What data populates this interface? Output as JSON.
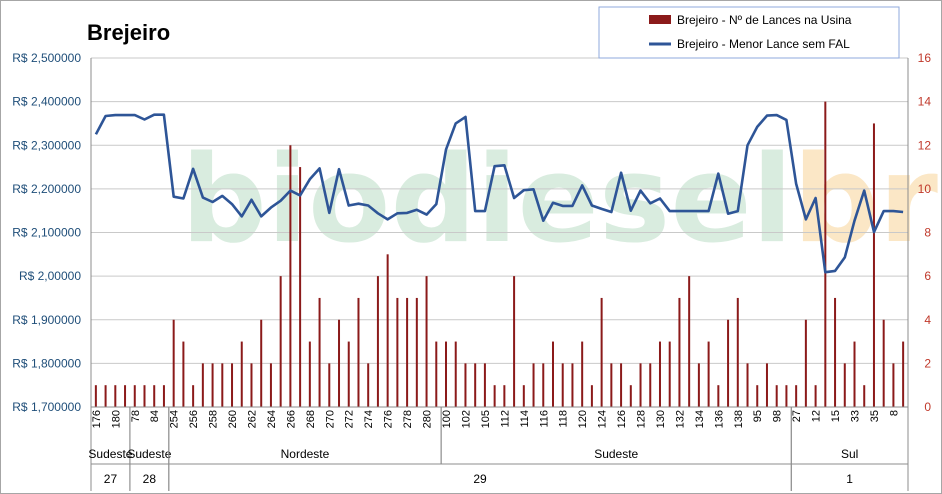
{
  "chart_data": {
    "type": "bar+line",
    "title": "Brejeiro",
    "watermark": "biodieselbr",
    "colors": {
      "bars": "#8b1a1a",
      "line": "#2e5597",
      "left_axis": "#1f4e79",
      "right_axis": "#c0392b"
    },
    "y_left": {
      "min": 1700000,
      "max": 2500000,
      "step": 100000,
      "ticks": [
        "R$ 2,500000",
        "R$ 2,400000",
        "R$ 2,300000",
        "R$ 2,200000",
        "R$ 2,100000",
        "R$ 2,00000",
        "R$ 1,900000",
        "R$ 1,800000",
        "R$ 1,700000"
      ]
    },
    "y_right": {
      "min": 0,
      "max": 16,
      "step": 2,
      "ticks": [
        "16",
        "14",
        "12",
        "10",
        "8",
        "6",
        "4",
        "2",
        "0"
      ]
    },
    "legend": {
      "position": "top-right",
      "entries": [
        "Brejeiro - Nº de Lances na Usina",
        "Brejeiro - Menor Lance sem FAL"
      ]
    },
    "x_tick_labels": [
      "176",
      "180",
      "78",
      "84",
      "254",
      "256",
      "258",
      "260",
      "262",
      "264",
      "266",
      "268",
      "270",
      "272",
      "274",
      "276",
      "278",
      "280",
      "100",
      "102",
      "105",
      "112",
      "114",
      "116",
      "118",
      "120",
      "124",
      "126",
      "128",
      "130",
      "132",
      "134",
      "136",
      "138",
      "95",
      "98",
      "27",
      "12",
      "15",
      "33",
      "35",
      "8"
    ],
    "regions": [
      {
        "label": "Sudeste",
        "start": 0,
        "end": 4
      },
      {
        "label": "Sudeste",
        "start": 4,
        "end": 8
      },
      {
        "label": "Nordeste",
        "start": 8,
        "end": 36
      },
      {
        "label": "Sudeste",
        "start": 36,
        "end": 72
      },
      {
        "label": "Sul",
        "start": 72,
        "end": 84
      }
    ],
    "auctions": [
      {
        "label": "27",
        "start": 0,
        "end": 4
      },
      {
        "label": "28",
        "start": 4,
        "end": 8
      },
      {
        "label": "29",
        "start": 8,
        "end": 72
      },
      {
        "label": "1",
        "start": 72,
        "end": 84
      }
    ],
    "series": [
      {
        "name": "Brejeiro - Nº de Lances na Usina",
        "type": "bar",
        "axis": "right",
        "values": [
          1,
          1,
          1,
          1,
          1,
          1,
          1,
          1,
          4,
          3,
          1,
          2,
          2,
          2,
          2,
          3,
          2,
          4,
          2,
          6,
          12,
          11,
          3,
          5,
          2,
          4,
          3,
          5,
          2,
          6,
          7,
          5,
          5,
          5,
          6,
          3,
          3,
          3,
          2,
          2,
          2,
          1,
          1,
          6,
          1,
          2,
          2,
          3,
          2,
          2,
          3,
          1,
          5,
          2,
          2,
          1,
          2,
          2,
          3,
          3,
          5,
          6,
          2,
          3,
          1,
          4,
          5,
          2,
          1,
          2,
          1,
          1,
          1,
          4,
          1,
          14,
          5,
          2,
          3,
          1,
          13,
          4,
          2,
          3
        ]
      },
      {
        "name": "Brejeiro - Menor Lance sem FAL",
        "type": "line",
        "axis": "left",
        "values": [
          2325000,
          2367000,
          2369000,
          2369000,
          2369000,
          2359000,
          2370000,
          2370000,
          2182000,
          2178000,
          2246000,
          2180000,
          2170000,
          2184000,
          2165000,
          2137000,
          2175000,
          2137000,
          2157000,
          2173000,
          2196000,
          2185000,
          2222000,
          2247000,
          2145000,
          2245000,
          2162000,
          2166000,
          2162000,
          2144000,
          2130000,
          2144000,
          2145000,
          2152000,
          2141000,
          2165000,
          2290000,
          2350000,
          2365000,
          2149000,
          2149000,
          2252000,
          2254000,
          2179000,
          2197000,
          2199000,
          2127000,
          2168000,
          2161000,
          2161000,
          2208000,
          2162000,
          2154000,
          2147000,
          2237000,
          2150000,
          2196000,
          2167000,
          2178000,
          2149000,
          2149000,
          2149000,
          2149000,
          2149000,
          2235000,
          2143000,
          2149000,
          2300000,
          2342000,
          2368000,
          2369000,
          2358000,
          2212000,
          2130000,
          2179000,
          2009000,
          2012000,
          2043000,
          2127000,
          2196000,
          2101000,
          2149000,
          2149000,
          2147000
        ]
      }
    ]
  }
}
